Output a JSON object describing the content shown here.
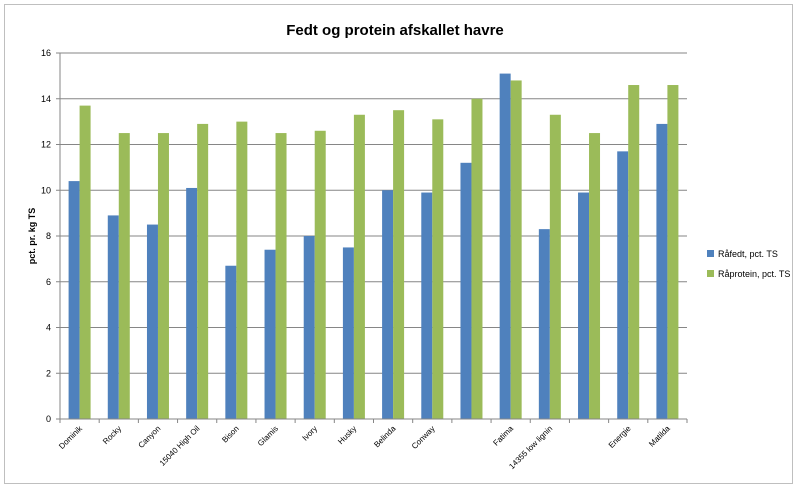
{
  "chart_data": {
    "type": "bar",
    "title": "Fedt og protein afskallet havre",
    "xlabel": "",
    "ylabel": "pct. pr. kg TS",
    "ylim": [
      0,
      16
    ],
    "yticks": [
      0,
      2,
      4,
      6,
      8,
      10,
      12,
      14,
      16
    ],
    "grid": true,
    "legend_position": "right",
    "categories": [
      "Dominik",
      "Rocky",
      "Canyon",
      "15040 High Oil",
      "Bison",
      "Glamis",
      "Ivory",
      "Husky",
      "Belinda",
      "Conway",
      "",
      "Fatima",
      "14355 low lignin",
      "",
      "Energie",
      "Matilda"
    ],
    "series": [
      {
        "name": "Råfedt, pct. TS",
        "color": "#4f81bd",
        "values": [
          10.4,
          8.9,
          8.5,
          10.1,
          6.7,
          7.4,
          8.0,
          7.5,
          10.0,
          9.9,
          11.2,
          15.1,
          8.3,
          9.9,
          11.7,
          12.9
        ]
      },
      {
        "name": "Råprotein, pct. TS",
        "color": "#9bbb59",
        "values": [
          13.7,
          12.5,
          12.5,
          12.9,
          13.0,
          12.5,
          12.6,
          13.3,
          13.5,
          13.1,
          14.0,
          14.8,
          13.3,
          12.5,
          14.6,
          14.6
        ]
      }
    ]
  }
}
